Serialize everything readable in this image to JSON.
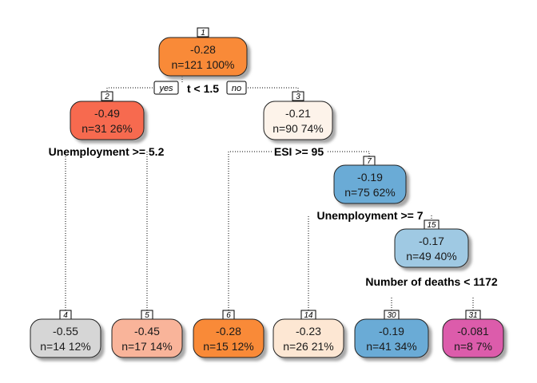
{
  "tree": {
    "nodes": [
      {
        "id": "1",
        "value": "-0.28",
        "n": "n=121  100%",
        "fill": "#F98A38",
        "index_label": "1"
      },
      {
        "id": "2",
        "value": "-0.49",
        "n": "n=31  26%",
        "fill": "#F76B4F",
        "index_label": "2"
      },
      {
        "id": "3",
        "value": "-0.21",
        "n": "n=90  74%",
        "fill": "#FDF3EA",
        "index_label": "3"
      },
      {
        "id": "7",
        "value": "-0.19",
        "n": "n=75  62%",
        "fill": "#6AABD6",
        "index_label": "7"
      },
      {
        "id": "15",
        "value": "-0.17",
        "n": "n=49  40%",
        "fill": "#9FC9E3",
        "index_label": "15"
      },
      {
        "id": "4",
        "value": "-0.55",
        "n": "n=14  12%",
        "fill": "#D6D6D6",
        "index_label": "4"
      },
      {
        "id": "5",
        "value": "-0.45",
        "n": "n=17  14%",
        "fill": "#F9B49A",
        "index_label": "5"
      },
      {
        "id": "6",
        "value": "-0.28",
        "n": "n=15  12%",
        "fill": "#F98A38",
        "index_label": "6"
      },
      {
        "id": "14",
        "value": "-0.23",
        "n": "n=26  21%",
        "fill": "#FDE7D3",
        "index_label": "14"
      },
      {
        "id": "30",
        "value": "-0.19",
        "n": "n=41  34%",
        "fill": "#6AABD6",
        "index_label": "30"
      },
      {
        "id": "31",
        "value": "-0.081",
        "n": "n=8  7%",
        "fill": "#DC5BAB",
        "index_label": "31"
      }
    ],
    "splits": [
      {
        "id": "s1",
        "label": "t < 1.5"
      },
      {
        "id": "s2",
        "label": "Unemployment >= 5.2"
      },
      {
        "id": "s3",
        "label": "ESI >= 95"
      },
      {
        "id": "s7",
        "label": "Unemployment >= 7"
      },
      {
        "id": "s15",
        "label": "Number of deaths < 1172"
      }
    ],
    "branch_labels": {
      "yes": "yes",
      "no": "no"
    }
  }
}
